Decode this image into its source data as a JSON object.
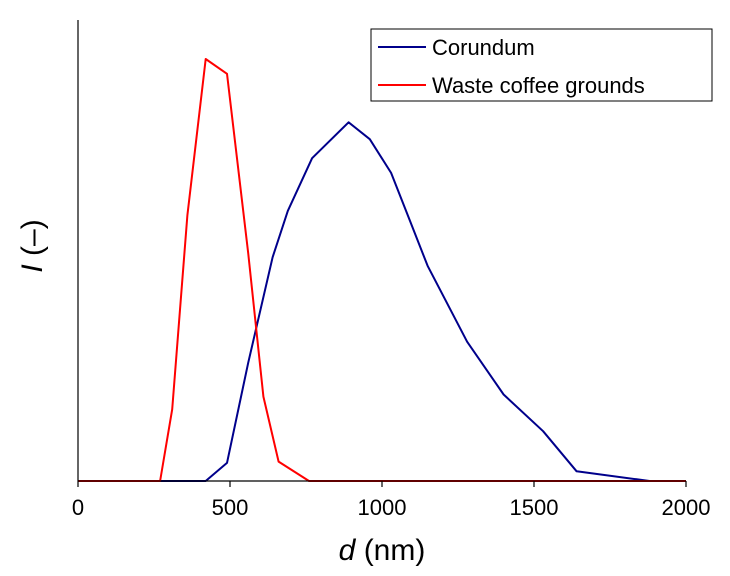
{
  "chart_data": {
    "type": "line",
    "xlabel": "d (nm)",
    "xlabel_var": "d",
    "xlabel_unit": "(nm)",
    "ylabel": "I (–)",
    "ylabel_var": "I",
    "ylabel_unit": "(–)",
    "xlim": [
      0,
      2000
    ],
    "ylim": [
      0,
      1
    ],
    "x_ticks": [
      0,
      500,
      1000,
      1500,
      2000
    ],
    "y_ticks_shown": false,
    "grid": false,
    "legend_position": "top-right",
    "series": [
      {
        "name": "Corundum",
        "color": "#00008B",
        "x": [
          0,
          420,
          490,
          560,
          640,
          690,
          770,
          890,
          960,
          1030,
          1090,
          1150,
          1280,
          1400,
          1530,
          1640,
          1880,
          2000
        ],
        "y": [
          0,
          0,
          0.043,
          0.28,
          0.53,
          0.64,
          0.765,
          0.85,
          0.81,
          0.73,
          0.62,
          0.51,
          0.33,
          0.205,
          0.118,
          0.023,
          0,
          0
        ]
      },
      {
        "name": "Waste coffee grounds",
        "color": "#FF0000",
        "x": [
          0,
          270,
          310,
          360,
          420,
          490,
          560,
          610,
          660,
          760,
          2000
        ],
        "y": [
          0,
          0,
          0.17,
          0.63,
          1.0,
          0.965,
          0.54,
          0.2,
          0.046,
          0,
          0
        ]
      }
    ]
  }
}
